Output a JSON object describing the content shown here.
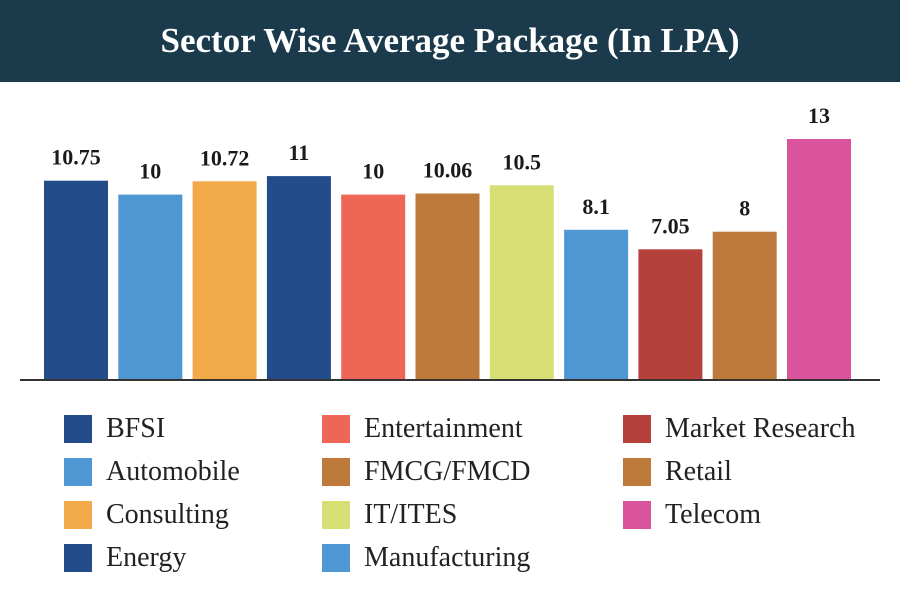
{
  "header": {
    "title": "Sector Wise Average Package (In LPA)"
  },
  "colors": {
    "header_bg": "#1b3a4b",
    "axis": "#333333"
  },
  "chart_data": {
    "type": "bar",
    "title": "Sector Wise Average Package (In LPA)",
    "xlabel": "",
    "ylabel": "",
    "ylim": [
      0,
      13
    ],
    "grid": false,
    "legend_placement": "bottom",
    "categories": [
      "BFSI",
      "Automobile",
      "Consulting",
      "Energy",
      "Entertainment",
      "FMCG/FMCD",
      "IT/ITES",
      "Manufacturing",
      "Market Research",
      "Retail",
      "Telecom"
    ],
    "values": [
      10.75,
      10,
      10.72,
      11,
      10,
      10.06,
      10.5,
      8.1,
      7.05,
      8,
      13
    ],
    "value_labels": [
      "10.75",
      "10",
      "10.72",
      "11",
      "10",
      "10.06",
      "10.5",
      "8.1",
      "7.05",
      "8",
      "13"
    ],
    "colors": [
      "#234d8a",
      "#4f97d3",
      "#f2a94a",
      "#234d8a",
      "#ee6655",
      "#bd7a3a",
      "#d6de74",
      "#4f97d3",
      "#b6403a",
      "#bd7a3a",
      "#d9549d"
    ]
  }
}
